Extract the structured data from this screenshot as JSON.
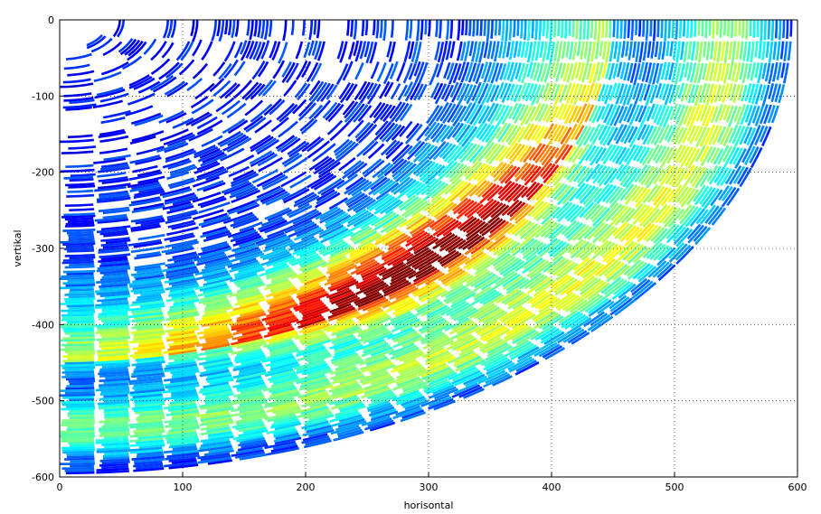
{
  "chart_data": {
    "type": "heatmap",
    "title": "",
    "xlabel": "horisontal",
    "ylabel": "vertikal",
    "xlim": [
      0,
      600
    ],
    "ylim": [
      -600,
      0
    ],
    "xticks": [
      "0",
      "100",
      "200",
      "300",
      "400",
      "500",
      "600"
    ],
    "yticks": [
      "0",
      "-100",
      "-200",
      "-300",
      "-400",
      "-500",
      "-600"
    ],
    "grid": true,
    "colormap": "jet",
    "description_of_field": "polar sector (radar-like scan) with concentric arcs centred at origin, radius ~0 to ~595; hotspot near (300, -320)",
    "max_radius": 595,
    "hotspot": {
      "x": 300,
      "y": -320
    }
  },
  "colors": {
    "axis": "#000000",
    "grid": "#000000",
    "background": "#ffffff"
  }
}
